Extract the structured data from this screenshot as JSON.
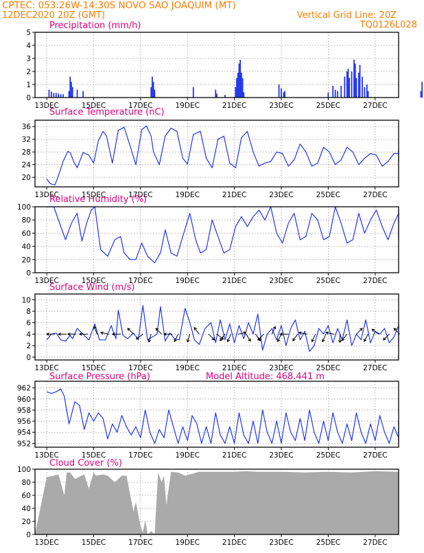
{
  "header": {
    "line1": "CPTEC:   053:26W-14:30S   NOVO SAO JOAQUIM (MT)",
    "line2_left": "12DEC2020 20Z (GMT)",
    "line2_right": "Vertical Grid Line: 20Z",
    "code": "TQ0126L028"
  },
  "extra_label": "Model Altitude: 468.441 m",
  "xticks": [
    "13DEC",
    "15DEC",
    "17DEC",
    "19DEC",
    "21DEC",
    "23DEC",
    "25DEC",
    "27DEC"
  ],
  "chart_data": [
    {
      "type": "bar",
      "title": "Precipitation (mm/h)",
      "ylim": [
        0,
        5
      ],
      "yticks": [
        "0",
        "1",
        "2",
        "3",
        "4",
        "5"
      ],
      "grid": true,
      "color": "#2233ee",
      "x_days": [
        0.1,
        0.2,
        0.3,
        0.4,
        0.5,
        0.6,
        0.7,
        0.95,
        1.0,
        1.05,
        1.1,
        1.3,
        1.55,
        4.45,
        4.5,
        4.55,
        4.6,
        6.25,
        7.2,
        7.25,
        7.6,
        8.05,
        8.1,
        8.15,
        8.2,
        8.25,
        8.3,
        8.35,
        8.4,
        9.9,
        10.0,
        10.1,
        10.15,
        12.0,
        12.2,
        12.3,
        12.4,
        12.55,
        12.7,
        12.8,
        12.85,
        12.9,
        13.0,
        13.1,
        13.15,
        13.2,
        13.3,
        13.35,
        13.45,
        13.55,
        13.65,
        13.7,
        15.95,
        16.0
      ],
      "values": [
        0.6,
        0.45,
        0.35,
        0.35,
        0.3,
        0.25,
        0.25,
        0.5,
        1.6,
        1.2,
        0.8,
        0.6,
        0.5,
        0.8,
        1.6,
        1.2,
        0.6,
        0.8,
        0.6,
        0.3,
        0.2,
        0.8,
        1.5,
        1.9,
        2.6,
        2.9,
        1.9,
        1.5,
        0.4,
        1.0,
        0.7,
        0.4,
        0.5,
        0.4,
        0.9,
        0.6,
        0.5,
        0.9,
        1.6,
        2.0,
        2.2,
        1.5,
        2.0,
        2.9,
        2.6,
        1.5,
        1.9,
        2.5,
        1.6,
        0.8,
        1.0,
        0.5,
        0.5,
        1.2
      ]
    },
    {
      "type": "line",
      "title": "Surface Temperature (nC)",
      "ylim": [
        17,
        38
      ],
      "yticks": [
        "20",
        "24",
        "28",
        "32",
        "36"
      ],
      "grid": true,
      "color": "#2233ee",
      "x_days": [
        0.0,
        0.15,
        0.35,
        0.5,
        0.7,
        0.9,
        1.0,
        1.15,
        1.3,
        1.55,
        1.8,
        2.0,
        2.2,
        2.4,
        2.55,
        2.8,
        3.05,
        3.3,
        3.55,
        3.8,
        4.05,
        4.25,
        4.45,
        4.55,
        4.8,
        5.05,
        5.3,
        5.55,
        5.8,
        6.0,
        6.25,
        6.55,
        6.8,
        7.05,
        7.3,
        7.55,
        7.8,
        8.05,
        8.3,
        8.55,
        8.8,
        9.05,
        9.3,
        9.55,
        9.8,
        10.05,
        10.3,
        10.55,
        10.8,
        11.05,
        11.3,
        11.55,
        11.8,
        12.05,
        12.3,
        12.55,
        12.8,
        13.05,
        13.3,
        13.55,
        13.8,
        14.05,
        14.3,
        14.55,
        14.8,
        15.05,
        15.3,
        15.55,
        15.8,
        16.0
      ],
      "values": [
        19.5,
        18.0,
        17.6,
        20.5,
        25.0,
        28.2,
        27.8,
        25.0,
        23.0,
        27.8,
        27.0,
        24.5,
        31.5,
        34.5,
        33.0,
        24.5,
        34.8,
        35.8,
        30.0,
        24.0,
        35.0,
        36.2,
        33.0,
        28.0,
        24.0,
        33.0,
        35.5,
        34.5,
        26.0,
        24.2,
        33.5,
        34.5,
        26.0,
        23.0,
        32.0,
        33.0,
        24.5,
        23.0,
        32.5,
        34.5,
        28.0,
        23.5,
        24.5,
        25.0,
        28.0,
        27.5,
        23.5,
        25.5,
        30.5,
        28.0,
        23.5,
        24.5,
        29.5,
        28.0,
        24.0,
        25.5,
        29.5,
        28.0,
        24.0,
        26.0,
        27.5,
        27.0,
        23.5,
        25.0,
        27.5,
        27.5,
        25.0,
        25.0,
        28.5,
        25.0
      ]
    },
    {
      "type": "line",
      "title": "Relative Humidity (%)",
      "ylim": [
        0,
        100
      ],
      "yticks": [
        "0",
        "20",
        "40",
        "60",
        "80",
        "100"
      ],
      "grid": true,
      "color": "#2233ee",
      "x_days": [
        0.0,
        0.3,
        0.55,
        0.8,
        1.05,
        1.3,
        1.5,
        1.7,
        1.9,
        2.05,
        2.3,
        2.6,
        2.9,
        3.15,
        3.3,
        3.55,
        3.8,
        4.05,
        4.3,
        4.6,
        4.85,
        5.05,
        5.3,
        5.55,
        5.8,
        6.1,
        6.35,
        6.55,
        6.8,
        7.05,
        7.3,
        7.55,
        7.8,
        8.05,
        8.3,
        8.55,
        8.8,
        9.05,
        9.3,
        9.55,
        9.8,
        10.05,
        10.3,
        10.55,
        10.8,
        11.05,
        11.3,
        11.55,
        11.8,
        12.05,
        12.3,
        12.55,
        12.8,
        13.05,
        13.3,
        13.55,
        13.8,
        14.05,
        14.3,
        14.55,
        14.8,
        15.05,
        15.3,
        15.55,
        15.8,
        16.0
      ],
      "values": [
        100,
        100,
        75,
        50,
        75,
        90,
        48,
        75,
        95,
        100,
        35,
        25,
        50,
        55,
        30,
        20,
        20,
        45,
        25,
        15,
        30,
        65,
        30,
        25,
        55,
        90,
        50,
        30,
        35,
        80,
        55,
        30,
        35,
        70,
        85,
        70,
        85,
        95,
        80,
        100,
        60,
        45,
        75,
        90,
        50,
        55,
        90,
        80,
        50,
        55,
        100,
        75,
        45,
        50,
        90,
        60,
        80,
        95,
        70,
        50,
        75,
        90,
        60,
        50,
        95,
        80
      ]
    },
    {
      "type": "line",
      "title": "Surface Wind (m/s)",
      "ylim": [
        -0.5,
        11
      ],
      "yticks": [
        "0",
        "2",
        "4",
        "6",
        "8",
        "10"
      ],
      "grid": true,
      "color": "#2233ee",
      "x_days": [
        0.0,
        0.2,
        0.4,
        0.6,
        0.8,
        1.0,
        1.1,
        1.3,
        1.55,
        1.8,
        2.05,
        2.25,
        2.5,
        2.75,
        2.95,
        3.05,
        3.25,
        3.45,
        3.7,
        3.9,
        4.1,
        4.3,
        4.5,
        4.7,
        4.85,
        5.05,
        5.25,
        5.45,
        5.65,
        5.9,
        6.1,
        6.3,
        6.5,
        6.75,
        7.0,
        7.2,
        7.4,
        7.6,
        7.8,
        8.0,
        8.2,
        8.4,
        8.6,
        8.8,
        9.0,
        9.2,
        9.4,
        9.6,
        9.8,
        10.0,
        10.2,
        10.4,
        10.6,
        10.8,
        11.0,
        11.2,
        11.4,
        11.6,
        11.8,
        12.0,
        12.2,
        12.4,
        12.6,
        12.8,
        13.0,
        13.2,
        13.4,
        13.6,
        13.8,
        14.0,
        14.2,
        14.4,
        14.6,
        14.8,
        15.0,
        15.2,
        15.4,
        15.6,
        15.8,
        16.0
      ],
      "values": [
        3.0,
        4.0,
        4.2,
        3.0,
        2.8,
        3.8,
        3.2,
        5.0,
        4.0,
        3.0,
        5.8,
        3.0,
        3.0,
        5.5,
        3.2,
        8.2,
        3.8,
        3.2,
        4.2,
        3.0,
        9.0,
        3.0,
        3.5,
        4.0,
        8.8,
        2.8,
        4.2,
        3.2,
        3.0,
        8.5,
        6.0,
        3.0,
        2.2,
        5.0,
        6.0,
        2.5,
        6.5,
        3.0,
        5.8,
        2.5,
        5.5,
        3.2,
        6.0,
        4.0,
        7.5,
        1.2,
        4.0,
        5.0,
        3.0,
        5.5,
        2.0,
        5.0,
        6.5,
        3.0,
        4.5,
        1.0,
        2.0,
        5.0,
        4.0,
        5.5,
        2.5,
        5.0,
        3.0,
        6.5,
        2.0,
        4.0,
        3.0,
        6.5,
        2.5,
        4.5,
        4.0,
        5.0,
        2.5,
        3.5,
        5.5,
        3.0,
        5.8,
        3.5,
        2.5,
        3.5
      ]
    },
    {
      "type": "line",
      "title": "Surface Pressure (hPa)",
      "ylim": [
        951.3,
        963.2
      ],
      "yticks": [
        "952",
        "954",
        "956",
        "958",
        "960",
        "962"
      ],
      "grid": true,
      "color": "#2233ee",
      "x_days": [
        0.0,
        0.2,
        0.4,
        0.6,
        0.75,
        0.95,
        1.2,
        1.4,
        1.6,
        1.8,
        2.0,
        2.2,
        2.4,
        2.6,
        2.8,
        3.0,
        3.2,
        3.4,
        3.6,
        3.8,
        4.0,
        4.2,
        4.4,
        4.6,
        4.8,
        5.0,
        5.2,
        5.4,
        5.6,
        5.8,
        6.0,
        6.2,
        6.4,
        6.6,
        6.8,
        7.0,
        7.2,
        7.4,
        7.6,
        7.8,
        8.0,
        8.2,
        8.4,
        8.6,
        8.8,
        9.0,
        9.2,
        9.4,
        9.6,
        9.8,
        10.0,
        10.2,
        10.4,
        10.6,
        10.8,
        11.0,
        11.2,
        11.4,
        11.6,
        11.8,
        12.0,
        12.2,
        12.4,
        12.6,
        12.8,
        13.0,
        13.2,
        13.4,
        13.6,
        13.8,
        14.0,
        14.2,
        14.4,
        14.6,
        14.8,
        15.0,
        15.2,
        15.4,
        15.6,
        15.8,
        16.0
      ],
      "values": [
        961.3,
        961.0,
        961.3,
        961.8,
        960.5,
        955.5,
        959.5,
        958.8,
        954.5,
        957.5,
        956.0,
        957.5,
        956.5,
        952.8,
        955.5,
        954.0,
        957.0,
        955.0,
        953.5,
        955.0,
        953.0,
        958.0,
        954.0,
        952.0,
        954.5,
        953.0,
        958.0,
        955.0,
        952.0,
        955.0,
        952.5,
        957.0,
        955.5,
        952.0,
        955.0,
        952.0,
        957.5,
        953.5,
        952.0,
        955.0,
        952.0,
        957.5,
        953.5,
        952.0,
        956.0,
        952.0,
        958.0,
        954.0,
        952.0,
        956.0,
        952.0,
        957.5,
        954.0,
        952.5,
        956.5,
        952.5,
        958.0,
        954.0,
        952.0,
        956.0,
        952.5,
        957.5,
        954.0,
        952.0,
        955.5,
        952.5,
        957.5,
        954.0,
        952.0,
        955.5,
        952.5,
        957.0,
        954.0,
        952.0,
        955.0,
        953.0,
        956.0,
        954.5,
        952.0,
        954.5,
        956.0
      ]
    },
    {
      "type": "area",
      "title": "Cloud Cover (%)",
      "ylim": [
        0,
        100
      ],
      "yticks": [
        "0",
        "20",
        "40",
        "60",
        "80",
        "100"
      ],
      "grid": true,
      "color": "#aaaaaa",
      "x_days": [
        0.0,
        0.3,
        0.5,
        0.75,
        0.85,
        1.0,
        1.2,
        1.6,
        1.8,
        2.0,
        2.1,
        2.4,
        2.6,
        2.9,
        3.2,
        3.4,
        3.7,
        3.8,
        4.0,
        4.1,
        4.2,
        4.3,
        4.45,
        4.6,
        4.75,
        4.9,
        5.0,
        5.1,
        5.3,
        5.6,
        5.9,
        6.1,
        6.5,
        7.0,
        7.5,
        8.0,
        8.5,
        9.0,
        10.0,
        11.0,
        12.0,
        13.0,
        14.0,
        15.0,
        16.0
      ],
      "values": [
        88,
        90,
        92,
        60,
        95,
        95,
        85,
        92,
        70,
        95,
        90,
        92,
        90,
        80,
        90,
        90,
        35,
        50,
        12,
        3,
        22,
        0,
        5,
        1,
        95,
        80,
        90,
        45,
        96,
        95,
        90,
        92,
        96,
        96,
        96,
        96,
        97,
        96,
        96,
        95,
        96,
        95,
        97,
        96,
        96
      ]
    },
    {
      "type": "vector",
      "title": "Surface Wind (m/s)",
      "x_days": [
        0.35,
        0.85,
        1.25,
        1.75,
        2.15,
        2.65,
        3.15,
        3.7,
        4.1,
        4.45,
        4.9,
        5.35,
        5.6,
        6.1,
        6.5,
        6.9,
        7.25,
        7.6,
        7.85,
        8.15,
        8.5,
        8.9,
        9.25,
        9.6,
        10.0,
        10.3,
        10.7,
        11.1,
        11.45,
        11.9,
        12.25,
        12.5,
        12.8,
        13.2,
        13.7,
        14.15,
        14.6,
        15.05
      ],
      "u": [
        -1,
        -1,
        -1,
        -1,
        -0.4,
        -1,
        -1,
        -0.6,
        -0.8,
        -0.3,
        -0.7,
        -1,
        -0.5,
        -0.3,
        -0.6,
        0.7,
        0.8,
        -0.6,
        -0.4,
        1,
        0.5,
        0.6,
        -0.7,
        0.4,
        -0.5,
        -1,
        -0.6,
        -1,
        -0.4,
        -0.4,
        -1,
        0,
        -0.8,
        0.7,
        -0.5,
        -0.8,
        -0.7,
        -0.7
      ],
      "v": [
        0,
        0,
        0,
        0,
        1,
        0.2,
        0,
        0.6,
        -0.6,
        -1,
        0.7,
        0,
        -1,
        -1,
        0.8,
        -0.7,
        -0.6,
        -0.8,
        -0.9,
        0.2,
        -0.8,
        -0.8,
        -0.7,
        0.9,
        -1,
        0,
        -0.8,
        0.2,
        -0.9,
        -0.9,
        0.2,
        -1,
        -1,
        0.7,
        -0.9,
        0.6,
        -0.7,
        0.7
      ]
    }
  ]
}
